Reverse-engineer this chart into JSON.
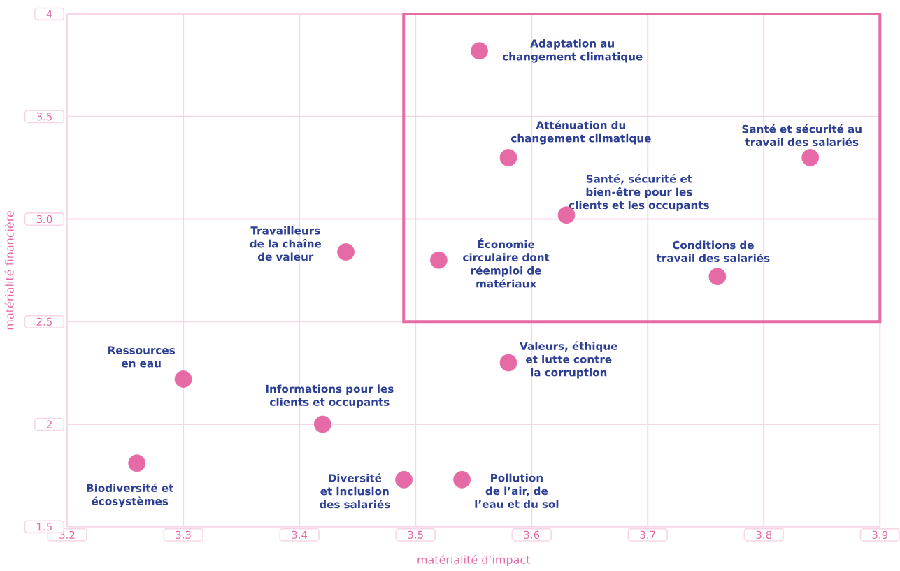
{
  "chart_data": {
    "type": "scatter",
    "xlabel": "matérialité d’impact",
    "ylabel": "matérialité financière",
    "xlim": [
      3.2,
      3.9
    ],
    "ylim": [
      1.5,
      4
    ],
    "xticks": [
      3.2,
      3.3,
      3.4,
      3.5,
      3.6,
      3.7,
      3.8,
      3.9
    ],
    "yticks": [
      1.5,
      2,
      2.5,
      {
        "value": 3,
        "label": "3.0"
      },
      3.5,
      4
    ],
    "grid": true,
    "marker": "circle",
    "series": [
      {
        "color": "#e56aa6",
        "x": [
          3.555,
          3.58,
          3.84,
          3.63,
          3.44,
          3.52,
          3.76,
          3.58,
          3.3,
          3.42,
          3.26,
          3.49,
          3.54
        ],
        "values": [
          3.82,
          3.3,
          3.3,
          3.02,
          2.84,
          2.8,
          2.72,
          2.3,
          2.22,
          2.0,
          1.81,
          1.73,
          1.73
        ]
      }
    ],
    "annotations": [
      {
        "text": "Adaptation au changement climatique",
        "x": 3.555,
        "y": 3.82
      },
      {
        "text": "Atténuation du changement climatique",
        "x": 3.58,
        "y": 3.3
      },
      {
        "text": "Santé et sécurité au travail des salariés",
        "x": 3.84,
        "y": 3.3
      },
      {
        "text": "Santé, sécurité et bien-être pour les clients et les occupants",
        "x": 3.63,
        "y": 3.02
      },
      {
        "text": "Travailleurs de la chaîne de valeur",
        "x": 3.44,
        "y": 2.84
      },
      {
        "text": "Économie circulaire dont réemploi de matériaux",
        "x": 3.52,
        "y": 2.8
      },
      {
        "text": "Conditions de travail des salariés",
        "x": 3.76,
        "y": 2.72
      },
      {
        "text": "Valeurs, éthique et lutte contre la corruption",
        "x": 3.58,
        "y": 2.3
      },
      {
        "text": "Ressources en eau",
        "x": 3.3,
        "y": 2.22
      },
      {
        "text": "Informations pour les clients et occupants",
        "x": 3.42,
        "y": 2.0
      },
      {
        "text": "Biodiversité et écosystèmes",
        "x": 3.26,
        "y": 1.81
      },
      {
        "text": "Diversité et inclusion des salariés",
        "x": 3.49,
        "y": 1.73
      },
      {
        "text": "Pollution de l’air, de l’eau et du sol",
        "x": 3.54,
        "y": 1.73
      }
    ]
  }
}
